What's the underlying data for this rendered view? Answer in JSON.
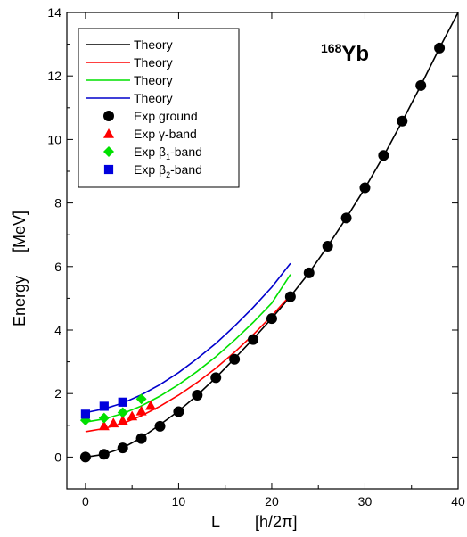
{
  "chart_data": {
    "type": "line",
    "nucleus": {
      "mass": "168",
      "symbol": "Yb"
    },
    "xlabel": "L",
    "xunit": "[h/2π]",
    "ylabel": "Energy",
    "yunit": "[MeV]",
    "xlim": [
      -2,
      40
    ],
    "ylim": [
      -1,
      14
    ],
    "xticks": [
      0,
      10,
      20,
      30,
      40
    ],
    "yticks": [
      0,
      2,
      4,
      6,
      8,
      10,
      12,
      14
    ],
    "grid": false,
    "legend_position": "top-left",
    "theory": [
      {
        "name": "Theory",
        "color": "#000000",
        "x": [
          0,
          2,
          4,
          6,
          8,
          10,
          12,
          14,
          16,
          18,
          20,
          22,
          24,
          26,
          28,
          30,
          32,
          34,
          36,
          38,
          40
        ],
        "y": [
          0.0,
          0.087,
          0.29,
          0.61,
          1.02,
          1.45,
          1.95,
          2.5,
          3.1,
          3.72,
          4.37,
          5.06,
          5.8,
          6.64,
          7.53,
          8.47,
          9.48,
          10.57,
          11.7,
          12.88,
          14.0
        ]
      },
      {
        "name": "Theory",
        "color": "#ff0000",
        "x": [
          0,
          2,
          4,
          6,
          8,
          10,
          12,
          14,
          16,
          18,
          20,
          22
        ],
        "y": [
          0.8,
          0.9,
          1.06,
          1.3,
          1.6,
          1.95,
          2.35,
          2.8,
          3.3,
          3.85,
          4.45,
          5.1
        ]
      },
      {
        "name": "Theory",
        "color": "#00e000",
        "x": [
          0,
          2,
          4,
          6,
          8,
          10,
          12,
          14,
          16,
          18,
          20,
          22
        ],
        "y": [
          1.1,
          1.2,
          1.37,
          1.61,
          1.92,
          2.28,
          2.7,
          3.16,
          3.68,
          4.24,
          4.85,
          5.75
        ]
      },
      {
        "name": "Theory",
        "color": "#0000cc",
        "x": [
          0,
          2,
          4,
          6,
          8,
          10,
          12,
          14,
          16,
          18,
          20,
          22
        ],
        "y": [
          1.4,
          1.52,
          1.7,
          1.96,
          2.28,
          2.66,
          3.1,
          3.58,
          4.12,
          4.71,
          5.35,
          6.1
        ]
      }
    ],
    "experiment": [
      {
        "name": "Exp ground",
        "marker": "circle",
        "color": "#000000",
        "x": [
          0,
          2,
          4,
          6,
          8,
          10,
          12,
          14,
          16,
          18,
          20,
          22,
          24,
          26,
          28,
          30,
          32,
          34,
          36,
          38
        ],
        "y": [
          0.0,
          0.087,
          0.287,
          0.585,
          0.97,
          1.43,
          1.95,
          2.5,
          3.08,
          3.7,
          4.36,
          5.05,
          5.8,
          6.64,
          7.53,
          8.48,
          9.5,
          10.58,
          11.7,
          12.88
        ]
      },
      {
        "name": "Exp γ-band",
        "name_main": "Exp ",
        "name_greek": "γ",
        "name_sub": "",
        "name_rest": "-band",
        "marker": "triangle",
        "color": "#ff0000",
        "x": [
          2,
          3,
          4,
          5,
          6,
          7
        ],
        "y": [
          0.98,
          1.07,
          1.15,
          1.29,
          1.45,
          1.62
        ]
      },
      {
        "name": "Exp β1-band",
        "name_main": "Exp ",
        "name_greek": "β",
        "name_sub": "1",
        "name_rest": "-band",
        "marker": "diamond",
        "color": "#00e000",
        "x": [
          0,
          2,
          4,
          6
        ],
        "y": [
          1.16,
          1.23,
          1.4,
          1.83
        ]
      },
      {
        "name": "Exp β2-band",
        "name_main": "Exp ",
        "name_greek": "β",
        "name_sub": "2",
        "name_rest": "-band",
        "marker": "square",
        "color": "#0000dd",
        "x": [
          0,
          2,
          4
        ],
        "y": [
          1.35,
          1.6,
          1.73
        ]
      }
    ]
  }
}
